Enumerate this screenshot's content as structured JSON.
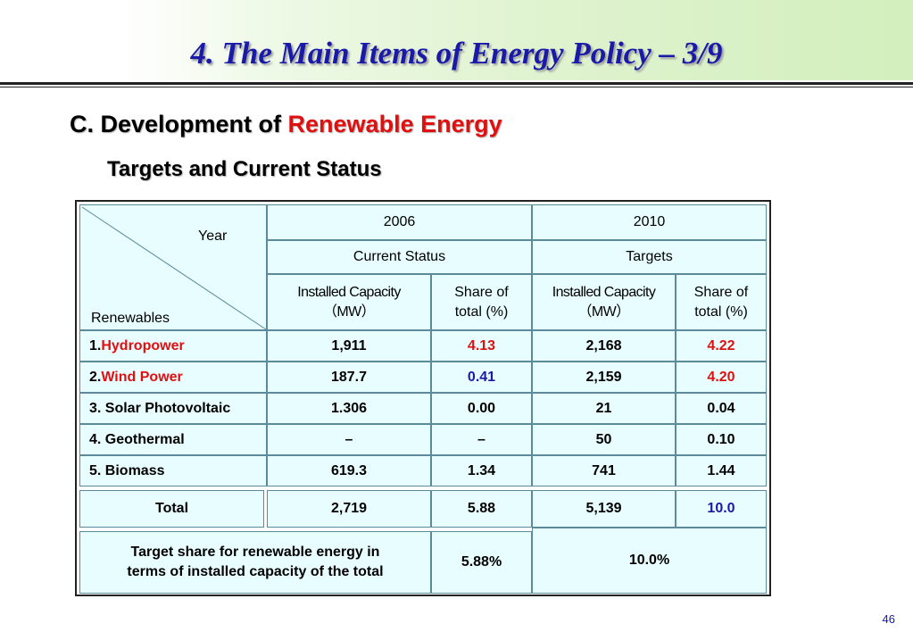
{
  "title": "4. The Main Items of Energy Policy – 3/9",
  "subtitle": {
    "prefix": "C. Development of ",
    "highlight": "Renewable Energy"
  },
  "subheading": "Targets and Current Status",
  "table": {
    "header": {
      "year_label": "Year",
      "renewables_label": "Renewables",
      "year_2006": "2006",
      "year_2010": "2010",
      "current_status": "Current Status",
      "targets": "Targets",
      "installed_capacity": "Installed Capacity",
      "unit_mw": "（MW）",
      "share_of": "Share of",
      "total_pct": "total (%)"
    },
    "rows": [
      {
        "num": "1. ",
        "name": "Hydropower",
        "cap2006": "1,911",
        "share2006": "4.13",
        "cap2010": "2,168",
        "share2010": "4.22"
      },
      {
        "num": "2. ",
        "name": "Wind Power",
        "cap2006": "187.7",
        "share2006": "0.41",
        "cap2010": "2,159",
        "share2010": "4.20"
      },
      {
        "num": "",
        "name": "3. Solar Photovoltaic",
        "cap2006": "1.306",
        "share2006": "0.00",
        "cap2010": "21",
        "share2010": "0.04"
      },
      {
        "num": "",
        "name": "4. Geothermal",
        "cap2006": "–",
        "share2006": "–",
        "cap2010": "50",
        "share2010": "0.10"
      },
      {
        "num": "",
        "name": "5. Biomass",
        "cap2006": "619.3",
        "share2006": "1.34",
        "cap2010": "741",
        "share2010": "1.44"
      }
    ],
    "total": {
      "label": "Total",
      "cap2006": "2,719",
      "share2006": "5.88",
      "cap2010": "5,139",
      "share2010": "10.0"
    },
    "target_share": {
      "label_line1": "Target share for renewable energy in",
      "label_line2": "terms of installed capacity of the total",
      "value2006": "5.88%",
      "value2010": "10.0%"
    }
  },
  "page_number": "46",
  "colors": {
    "title_blue": "#1a1aa8",
    "highlight_red": "#e01010",
    "cell_bg": "#e8fdff"
  }
}
